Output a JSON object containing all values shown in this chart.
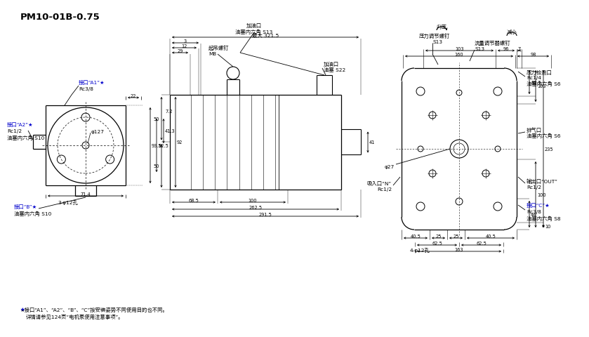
{
  "title": "PM10-01B-0.75",
  "bg_color": "#ffffff",
  "line_color": "#000000",
  "blue_color": "#0000cd",
  "footnote1": "★接口“A1”、“A2”、“B”、“C”按安装姿势不同使用目的也不同。",
  "footnote2": "详情请参见124页“电机泵使用注意事项”。",
  "labels": {
    "port_a1": "接口“A1”★",
    "rc38_a1": "Rc3/8",
    "port_a2": "接口“A2”★",
    "rc12_a2": "Rc1/2",
    "hexs10_a2": "油塞内六角 S10",
    "port_b": "接口“B”★",
    "hexs10_b": "油塞内六角 S10",
    "filler_s13_top": "加油口",
    "hexs13": "油塞内六角 S13",
    "lift_bolt": "起吊螺钉",
    "m8": "M8",
    "max_321": "最大 321.5",
    "filler_s22": "加油口",
    "oils22": "油塞 S22",
    "pressure_screw": "压力调节螺钉",
    "s13_ps": "S13",
    "flow_screw": "流量调节器螺钉",
    "s13_fs": "S13",
    "pressure_port": "压力检测口",
    "rc14": "Rc1/4",
    "hexs6_p": "油塞内六角 S6",
    "exhaust": "排气口",
    "hexs6_e": "油塞内六角 S6",
    "inlet": "吸入口“N”",
    "rc12_n": "Rc1/2",
    "outlet": "输出口“OUT”",
    "rc12_out": "Rc1/2",
    "port_c": "接口“C”★",
    "rc38_c": "Rc3/8",
    "hexs8_c": "油塞内六角 S8",
    "shengya": "升压",
    "jianxiao": "减小",
    "phi27": "φ27",
    "phi127": "φ127",
    "three_phi12": "3-φ12孔",
    "four_phi12": "4-φ12孔"
  },
  "dims": {
    "d22": "22",
    "d12": "12",
    "d29": "29",
    "d3": "3",
    "d50a": "50",
    "d50b": "50",
    "d92": "92",
    "d41": "41",
    "d93_5": "93.5",
    "d82_5": "82.5",
    "d72": "7.2",
    "d41_3": "41.3",
    "d71_4": "71.4",
    "d68_5": "68.5",
    "d100": "100",
    "d262_5": "262.5",
    "d291_5": "291.5",
    "d160": "160",
    "d98": "98",
    "d103": "103",
    "d96": "96",
    "d7": "7",
    "d80_5": "80.5",
    "d103r": "103",
    "d235": "235",
    "d44": "44",
    "d100r": "100",
    "d10": "10",
    "d40_5a": "40.5",
    "d25a": "25",
    "d25b": "25",
    "d40_5b": "40.5",
    "d62_5a": "62.5",
    "d62_5b": "62.5",
    "d163": "163"
  }
}
